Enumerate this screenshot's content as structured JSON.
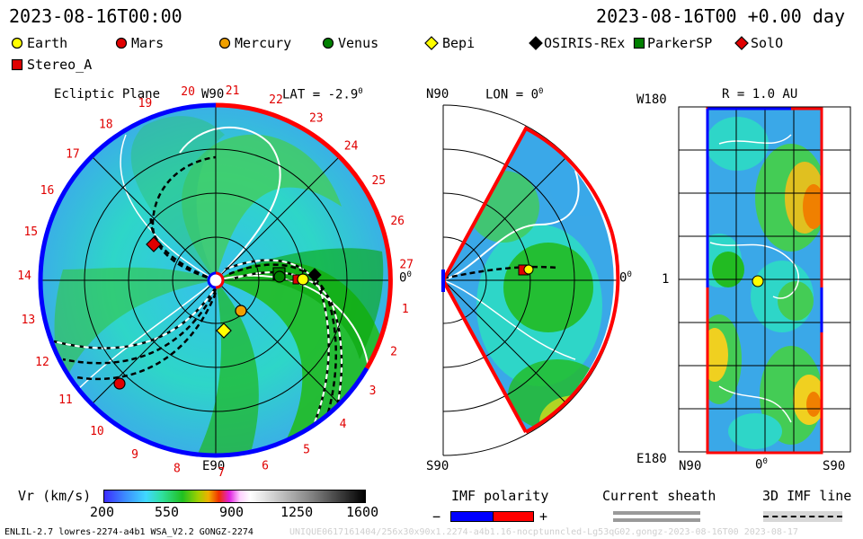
{
  "header": {
    "timestamp_left": "2023-08-16T00:00",
    "timestamp_right": "2023-08-16T00 +0.00 day"
  },
  "legend": {
    "items": [
      {
        "label": "Earth",
        "marker": "circle",
        "color": "#ffff00"
      },
      {
        "label": "Mars",
        "marker": "circle",
        "color": "#e00000"
      },
      {
        "label": "Mercury",
        "marker": "circle",
        "color": "#f0a000"
      },
      {
        "label": "Venus",
        "marker": "circle",
        "color": "#008000"
      },
      {
        "label": "Bepi",
        "marker": "diamond",
        "color": "#ffff00"
      },
      {
        "label": "OSIRIS-REx",
        "marker": "diamond",
        "color": "#000000"
      },
      {
        "label": "ParkerSP",
        "marker": "square",
        "color": "#008000"
      },
      {
        "label": "SolO",
        "marker": "diamond",
        "color": "#e00000"
      },
      {
        "label": "Stereo_A",
        "marker": "square",
        "color": "#e00000"
      }
    ]
  },
  "panels": {
    "ecliptic": {
      "title": "Ecliptic Plane",
      "lat_label": "LAT = -2.9",
      "lat_sup": "0",
      "w90_label": "W90",
      "e90_label": "E90",
      "zero_label": "0",
      "zero_sup": "0",
      "ticks": [
        "1",
        "2",
        "3",
        "4",
        "5",
        "6",
        "7",
        "8",
        "9",
        "10",
        "11",
        "12",
        "13",
        "14",
        "15",
        "16",
        "17",
        "18",
        "19",
        "20",
        "21",
        "22",
        "23",
        "24",
        "25",
        "26",
        "27"
      ]
    },
    "meridional": {
      "n_label": "N90",
      "s_label": "S90",
      "lon_label": "LON = 0",
      "lon_sup": "0",
      "zero_label": "0",
      "zero_sup": "0"
    },
    "map": {
      "r_label": "R = 1.0 AU",
      "w180_label": "W180",
      "e180_label": "E180",
      "one_label": "1",
      "n90_label": "N90",
      "zero_label": "0",
      "zero_sup": "0",
      "s90_label": "S90"
    }
  },
  "colorbar": {
    "title": "Vr (km/s)",
    "ticks": [
      "200",
      "550",
      "900",
      "1250",
      "1600"
    ]
  },
  "imf_polarity": {
    "title": "IMF polarity",
    "minus": "−",
    "plus": "+"
  },
  "current_sheath": {
    "title": "Current sheath"
  },
  "imf_line": {
    "title": "3D IMF line"
  },
  "footer": {
    "left": "ENLIL-2.7 lowres-2274-a4b1 WSA_V2.2 GONGZ-2274",
    "right": "UNIQUE0617161404/256x30x90x1.2274-a4b1.16-nocptunncled-Lg53qG02.gongz-2023-08-16T00 2023-08-17"
  },
  "colors": {
    "sheath_gray": "#9a9a9a",
    "polarity_blue": "#0000ff",
    "polarity_red": "#ff0000",
    "field_green": "#1fb81f",
    "field_cyan": "#2ad6c8",
    "field_blue": "#3aa8e8"
  }
}
